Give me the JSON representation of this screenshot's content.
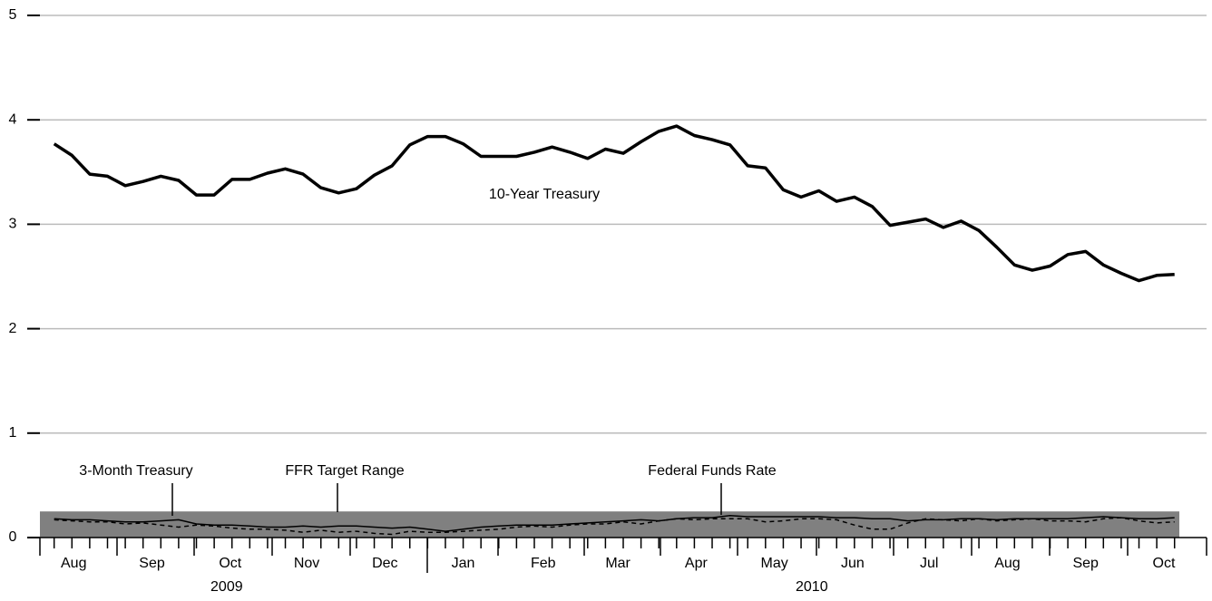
{
  "chart_data": {
    "type": "line",
    "series": [
      {
        "name": "10-Year Treasury",
        "color": "#000000",
        "style": "solid-thick",
        "values": [
          3.77,
          3.66,
          3.48,
          3.46,
          3.37,
          3.41,
          3.46,
          3.42,
          3.28,
          3.28,
          3.43,
          3.43,
          3.49,
          3.53,
          3.48,
          3.35,
          3.3,
          3.34,
          3.47,
          3.56,
          3.76,
          3.84,
          3.84,
          3.77,
          3.65,
          3.65,
          3.65,
          3.69,
          3.74,
          3.69,
          3.63,
          3.72,
          3.68,
          3.79,
          3.89,
          3.94,
          3.85,
          3.81,
          3.76,
          3.56,
          3.54,
          3.33,
          3.26,
          3.32,
          3.22,
          3.26,
          3.17,
          2.99,
          3.02,
          3.05,
          2.97,
          3.03,
          2.94,
          2.78,
          2.61,
          2.56,
          2.6,
          2.71,
          2.74,
          2.61,
          2.53,
          2.46,
          2.51,
          2.52
        ]
      },
      {
        "name": "3-Month Treasury",
        "color": "#000000",
        "style": "solid",
        "values": [
          0.18,
          0.17,
          0.17,
          0.16,
          0.15,
          0.15,
          0.16,
          0.17,
          0.13,
          0.12,
          0.12,
          0.11,
          0.1,
          0.1,
          0.11,
          0.1,
          0.11,
          0.11,
          0.1,
          0.09,
          0.1,
          0.08,
          0.06,
          0.08,
          0.1,
          0.11,
          0.12,
          0.12,
          0.12,
          0.13,
          0.14,
          0.15,
          0.16,
          0.17,
          0.16,
          0.18,
          0.19,
          0.19,
          0.21,
          0.2,
          0.2,
          0.2,
          0.2,
          0.2,
          0.19,
          0.19,
          0.18,
          0.18,
          0.16,
          0.17,
          0.17,
          0.18,
          0.18,
          0.17,
          0.18,
          0.18,
          0.18,
          0.18,
          0.19,
          0.2,
          0.19,
          0.18,
          0.18,
          0.19
        ]
      },
      {
        "name": "Federal Funds Rate",
        "color": "#000000",
        "style": "dashed",
        "values": [
          0.17,
          0.16,
          0.15,
          0.15,
          0.13,
          0.14,
          0.12,
          0.1,
          0.12,
          0.11,
          0.09,
          0.08,
          0.08,
          0.07,
          0.05,
          0.07,
          0.05,
          0.06,
          0.04,
          0.03,
          0.06,
          0.05,
          0.05,
          0.06,
          0.07,
          0.08,
          0.1,
          0.11,
          0.1,
          0.12,
          0.13,
          0.13,
          0.15,
          0.13,
          0.16,
          0.18,
          0.17,
          0.18,
          0.18,
          0.18,
          0.15,
          0.16,
          0.18,
          0.18,
          0.17,
          0.12,
          0.08,
          0.08,
          0.14,
          0.18,
          0.17,
          0.16,
          0.18,
          0.16,
          0.17,
          0.18,
          0.16,
          0.16,
          0.15,
          0.18,
          0.19,
          0.16,
          0.14,
          0.15
        ]
      }
    ],
    "target_range": {
      "name": "FFR Target Range",
      "range": [
        0,
        0.25
      ],
      "color": "#808080"
    },
    "xlim": [
      -0.8,
      64.8
    ],
    "xticks": [
      {
        "value": 1.1,
        "label": "Aug"
      },
      {
        "value": 5.5,
        "label": "Sep"
      },
      {
        "value": 9.9,
        "label": "Oct"
      },
      {
        "value": 14.2,
        "label": "Nov"
      },
      {
        "value": 18.6,
        "label": "Dec"
      },
      {
        "value": 23.0,
        "label": "Jan"
      },
      {
        "value": 27.5,
        "label": "Feb"
      },
      {
        "value": 31.7,
        "label": "Mar"
      },
      {
        "value": 36.1,
        "label": "Apr"
      },
      {
        "value": 40.5,
        "label": "May"
      },
      {
        "value": 44.9,
        "label": "Jun"
      },
      {
        "value": 49.2,
        "label": "Jul"
      },
      {
        "value": 53.6,
        "label": "Aug"
      },
      {
        "value": 58.0,
        "label": "Sep"
      },
      {
        "value": 62.4,
        "label": "Oct"
      }
    ],
    "years": [
      {
        "value": 9.7,
        "label": "2009"
      },
      {
        "value": 42.6,
        "label": "2010"
      }
    ],
    "ylim": [
      0,
      5
    ],
    "yticks": [
      0,
      1,
      2,
      3,
      4,
      5
    ],
    "grid": true
  }
}
